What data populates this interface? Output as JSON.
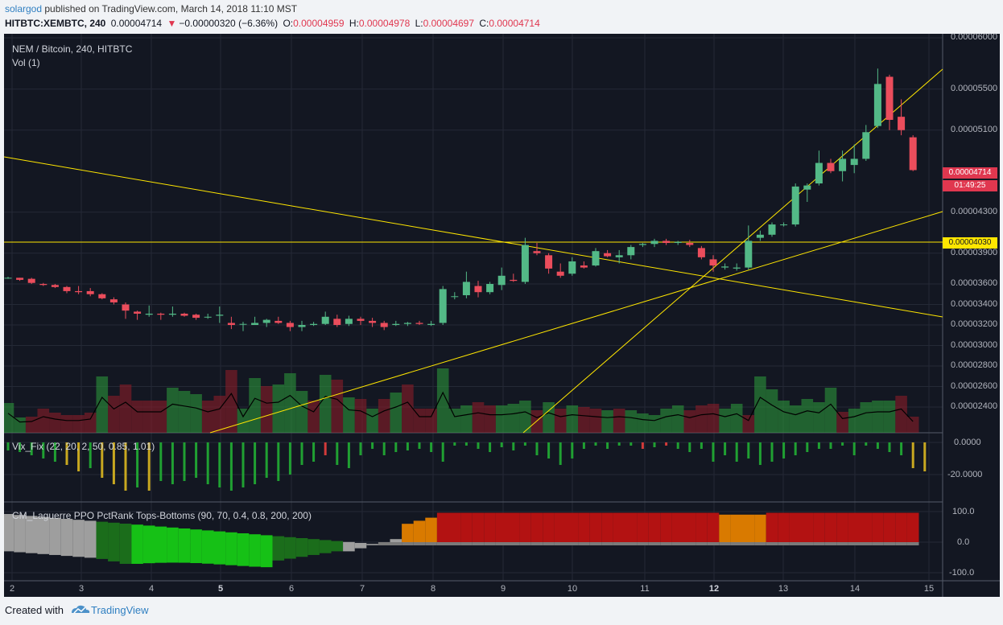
{
  "header": {
    "author": "solargod",
    "published_text": "published on TradingView.com, March 14, 2018 11:10 MST",
    "symbol": "HITBTC:XEMBTC, 240",
    "last": "0.00004714",
    "change": "−0.00000320 (−6.36%)",
    "o_label": "O:",
    "o": "0.00004959",
    "h_label": "H:",
    "h": "0.00004978",
    "l_label": "L:",
    "l": "0.00004697",
    "c_label": "C:",
    "c": "0.00004714"
  },
  "legend": {
    "title": "NEM / Bitcoin, 240, HITBTC",
    "vol": "Vol (1)",
    "vix": "Vix_Fix (22, 20, 2, 50, 0.85, 1.01)",
    "laguerre": "CM_Laguerre PPO PctRank Tops-Bottoms (90, 70, 0.4, 0.8, 200, 200)"
  },
  "price_axis": [
    "0.00006000",
    "0.00005500",
    "0.00005100",
    "0.00004300",
    "0.00003900",
    "0.00003600",
    "0.00003400",
    "0.00003200",
    "0.00003000",
    "0.00002800",
    "0.00002600",
    "0.00002400"
  ],
  "price_badge": {
    "value": "0.00004714",
    "countdown": "01:49:25",
    "color": "#e0374f"
  },
  "line_badge": {
    "value": "0.00004030",
    "color": "#ffe600"
  },
  "vix_axis": [
    "0.0000",
    "-20.0000"
  ],
  "lag_axis": [
    "100.0",
    "0.0",
    "-100.0"
  ],
  "time_axis": [
    {
      "label": "2",
      "bold": false
    },
    {
      "label": "3",
      "bold": false
    },
    {
      "label": "4",
      "bold": false
    },
    {
      "label": "5",
      "bold": true
    },
    {
      "label": "6",
      "bold": false
    },
    {
      "label": "7",
      "bold": false
    },
    {
      "label": "8",
      "bold": false
    },
    {
      "label": "9",
      "bold": false
    },
    {
      "label": "10",
      "bold": false
    },
    {
      "label": "11",
      "bold": false
    },
    {
      "label": "12",
      "bold": true
    },
    {
      "label": "13",
      "bold": false
    },
    {
      "label": "14",
      "bold": false
    },
    {
      "label": "15",
      "bold": false
    }
  ],
  "footer": {
    "created": "Created with",
    "brand": "TradingView"
  },
  "colors": {
    "up": "#53b987",
    "down": "#eb4d5c",
    "bg": "#131722",
    "trend": "#ffe600"
  },
  "chart_data": {
    "type": "candlestick",
    "ohlc": [
      [
        3.66,
        3.67,
        3.65,
        3.66
      ],
      [
        3.66,
        3.66,
        3.63,
        3.64
      ],
      [
        3.65,
        3.66,
        3.6,
        3.61
      ],
      [
        3.6,
        3.61,
        3.58,
        3.59
      ],
      [
        3.59,
        3.6,
        3.56,
        3.57
      ],
      [
        3.57,
        3.58,
        3.51,
        3.53
      ],
      [
        3.53,
        3.58,
        3.5,
        3.52
      ],
      [
        3.53,
        3.56,
        3.48,
        3.5
      ],
      [
        3.5,
        3.51,
        3.45,
        3.46
      ],
      [
        3.45,
        3.47,
        3.4,
        3.42
      ],
      [
        3.4,
        3.42,
        3.26,
        3.34
      ],
      [
        3.33,
        3.34,
        3.25,
        3.31
      ],
      [
        3.3,
        3.39,
        3.28,
        3.31
      ],
      [
        3.31,
        3.32,
        3.25,
        3.3
      ],
      [
        3.3,
        3.38,
        3.28,
        3.31
      ],
      [
        3.31,
        3.32,
        3.28,
        3.29
      ],
      [
        3.3,
        3.31,
        3.25,
        3.27
      ],
      [
        3.28,
        3.31,
        3.26,
        3.28
      ],
      [
        3.29,
        3.38,
        3.22,
        3.3
      ],
      [
        3.22,
        3.28,
        3.16,
        3.2
      ],
      [
        3.21,
        3.23,
        3.14,
        3.21
      ],
      [
        3.2,
        3.28,
        3.2,
        3.22
      ],
      [
        3.22,
        3.26,
        3.18,
        3.25
      ],
      [
        3.24,
        3.28,
        3.21,
        3.22
      ],
      [
        3.22,
        3.24,
        3.14,
        3.18
      ],
      [
        3.18,
        3.24,
        3.14,
        3.2
      ],
      [
        3.2,
        3.23,
        3.19,
        3.21
      ],
      [
        3.21,
        3.33,
        3.2,
        3.28
      ],
      [
        3.26,
        3.3,
        3.18,
        3.2
      ],
      [
        3.21,
        3.29,
        3.19,
        3.26
      ],
      [
        3.26,
        3.28,
        3.2,
        3.24
      ],
      [
        3.24,
        3.27,
        3.18,
        3.22
      ],
      [
        3.22,
        3.24,
        3.15,
        3.18
      ],
      [
        3.2,
        3.24,
        3.19,
        3.21
      ],
      [
        3.21,
        3.23,
        3.19,
        3.22
      ],
      [
        3.22,
        3.24,
        3.2,
        3.21
      ],
      [
        3.2,
        3.24,
        3.19,
        3.21
      ],
      [
        3.22,
        3.58,
        3.2,
        3.55
      ],
      [
        3.48,
        3.52,
        3.45,
        3.48
      ],
      [
        3.49,
        3.72,
        3.46,
        3.62
      ],
      [
        3.58,
        3.63,
        3.47,
        3.52
      ],
      [
        3.52,
        3.62,
        3.5,
        3.6
      ],
      [
        3.59,
        3.76,
        3.54,
        3.68
      ],
      [
        3.64,
        3.7,
        3.62,
        3.63
      ],
      [
        3.62,
        4.05,
        3.6,
        3.98
      ],
      [
        3.92,
        4.0,
        3.88,
        3.9
      ],
      [
        3.88,
        3.9,
        3.7,
        3.75
      ],
      [
        3.72,
        3.8,
        3.66,
        3.68
      ],
      [
        3.7,
        3.86,
        3.68,
        3.82
      ],
      [
        3.78,
        3.82,
        3.75,
        3.76
      ],
      [
        3.78,
        3.95,
        3.77,
        3.92
      ],
      [
        3.9,
        3.93,
        3.86,
        3.87
      ],
      [
        3.86,
        3.93,
        3.8,
        3.88
      ],
      [
        3.88,
        3.98,
        3.84,
        3.96
      ],
      [
        3.98,
        4.0,
        3.96,
        3.99
      ],
      [
        3.99,
        4.04,
        3.96,
        4.02
      ],
      [
        4.02,
        4.04,
        3.98,
        4.0
      ],
      [
        4.0,
        4.02,
        3.98,
        4.01
      ],
      [
        4.0,
        4.03,
        3.96,
        3.98
      ],
      [
        3.95,
        3.97,
        3.84,
        3.86
      ],
      [
        3.84,
        3.88,
        3.72,
        3.78
      ],
      [
        3.76,
        3.8,
        3.74,
        3.77
      ],
      [
        3.75,
        3.8,
        3.73,
        3.76
      ],
      [
        3.76,
        4.17,
        3.74,
        4.02
      ],
      [
        4.05,
        4.12,
        4.02,
        4.08
      ],
      [
        4.08,
        4.2,
        4.06,
        4.18
      ],
      [
        4.18,
        4.2,
        4.16,
        4.18
      ],
      [
        4.18,
        4.58,
        4.16,
        4.55
      ],
      [
        4.52,
        4.58,
        4.4,
        4.56
      ],
      [
        4.58,
        4.9,
        4.56,
        4.78
      ],
      [
        4.78,
        4.82,
        4.68,
        4.7
      ],
      [
        4.7,
        4.9,
        4.6,
        4.82
      ],
      [
        4.76,
        4.96,
        4.68,
        4.82
      ],
      [
        4.82,
        5.15,
        4.8,
        5.08
      ],
      [
        5.14,
        5.7,
        5.12,
        5.55
      ],
      [
        5.62,
        5.64,
        5.1,
        5.2
      ],
      [
        5.23,
        5.4,
        5.05,
        5.1
      ],
      [
        5.03,
        5.05,
        4.7,
        4.71
      ]
    ],
    "volume": [
      [
        37,
        1
      ],
      [
        19,
        1
      ],
      [
        20,
        0
      ],
      [
        30,
        0
      ],
      [
        25,
        0
      ],
      [
        22,
        0
      ],
      [
        22,
        0
      ],
      [
        25,
        0
      ],
      [
        70,
        1
      ],
      [
        46,
        0
      ],
      [
        60,
        0
      ],
      [
        40,
        0
      ],
      [
        40,
        0
      ],
      [
        40,
        0
      ],
      [
        56,
        1
      ],
      [
        52,
        1
      ],
      [
        48,
        1
      ],
      [
        40,
        0
      ],
      [
        46,
        0
      ],
      [
        78,
        0
      ],
      [
        30,
        1
      ],
      [
        68,
        1
      ],
      [
        58,
        0
      ],
      [
        60,
        1
      ],
      [
        74,
        1
      ],
      [
        52,
        1
      ],
      [
        40,
        0
      ],
      [
        72,
        1
      ],
      [
        66,
        0
      ],
      [
        44,
        1
      ],
      [
        42,
        0
      ],
      [
        30,
        1
      ],
      [
        42,
        0
      ],
      [
        50,
        1
      ],
      [
        60,
        0
      ],
      [
        30,
        0
      ],
      [
        30,
        0
      ],
      [
        80,
        1
      ],
      [
        30,
        1
      ],
      [
        34,
        1
      ],
      [
        38,
        0
      ],
      [
        34,
        0
      ],
      [
        34,
        1
      ],
      [
        36,
        1
      ],
      [
        40,
        1
      ],
      [
        28,
        0
      ],
      [
        38,
        1
      ],
      [
        30,
        0
      ],
      [
        34,
        1
      ],
      [
        32,
        0
      ],
      [
        30,
        0
      ],
      [
        28,
        1
      ],
      [
        30,
        0
      ],
      [
        28,
        1
      ],
      [
        24,
        1
      ],
      [
        22,
        1
      ],
      [
        30,
        1
      ],
      [
        34,
        1
      ],
      [
        28,
        0
      ],
      [
        34,
        0
      ],
      [
        36,
        0
      ],
      [
        30,
        1
      ],
      [
        36,
        1
      ],
      [
        22,
        0
      ],
      [
        70,
        1
      ],
      [
        54,
        1
      ],
      [
        40,
        1
      ],
      [
        34,
        1
      ],
      [
        42,
        1
      ],
      [
        38,
        1
      ],
      [
        56,
        1
      ],
      [
        26,
        0
      ],
      [
        30,
        1
      ],
      [
        38,
        1
      ],
      [
        40,
        1
      ],
      [
        40,
        1
      ],
      [
        46,
        0
      ],
      [
        20,
        0
      ]
    ],
    "vix": [
      [
        -5,
        1
      ],
      [
        -6,
        1
      ],
      [
        -8,
        1
      ],
      [
        -10,
        1
      ],
      [
        -12,
        1
      ],
      [
        -14,
        0
      ],
      [
        -18,
        0
      ],
      [
        -16,
        1
      ],
      [
        -22,
        0
      ],
      [
        -26,
        0
      ],
      [
        -30,
        0
      ],
      [
        -28,
        1
      ],
      [
        -30,
        0
      ],
      [
        -24,
        1
      ],
      [
        -26,
        1
      ],
      [
        -24,
        1
      ],
      [
        -22,
        1
      ],
      [
        -26,
        1
      ],
      [
        -28,
        1
      ],
      [
        -30,
        1
      ],
      [
        -28,
        1
      ],
      [
        -26,
        1
      ],
      [
        -22,
        1
      ],
      [
        -24,
        1
      ],
      [
        -20,
        1
      ],
      [
        -14,
        1
      ],
      [
        -12,
        1
      ],
      [
        -8,
        2
      ],
      [
        -14,
        1
      ],
      [
        -16,
        1
      ],
      [
        -8,
        1
      ],
      [
        -4,
        1
      ],
      [
        -8,
        1
      ],
      [
        -6,
        1
      ],
      [
        -5,
        1
      ],
      [
        -4,
        1
      ],
      [
        -6,
        1
      ],
      [
        -12,
        1
      ],
      [
        -2,
        1
      ],
      [
        -2,
        1
      ],
      [
        -4,
        1
      ],
      [
        -6,
        1
      ],
      [
        -3,
        1
      ],
      [
        -5,
        1
      ],
      [
        -2,
        1
      ],
      [
        -8,
        1
      ],
      [
        -10,
        1
      ],
      [
        -14,
        1
      ],
      [
        -10,
        1
      ],
      [
        -4,
        1
      ],
      [
        -2,
        1
      ],
      [
        -4,
        1
      ],
      [
        -2,
        1
      ],
      [
        -2,
        1
      ],
      [
        -4,
        2
      ],
      [
        -3,
        1
      ],
      [
        -2,
        2
      ],
      [
        -4,
        1
      ],
      [
        -6,
        1
      ],
      [
        -4,
        1
      ],
      [
        -12,
        1
      ],
      [
        -8,
        1
      ],
      [
        -12,
        1
      ],
      [
        -10,
        1
      ],
      [
        -14,
        1
      ],
      [
        -12,
        1
      ],
      [
        -10,
        1
      ],
      [
        -8,
        1
      ],
      [
        -6,
        1
      ],
      [
        -4,
        1
      ],
      [
        -4,
        1
      ],
      [
        -2,
        1
      ],
      [
        -8,
        1
      ],
      [
        -2,
        1
      ],
      [
        -4,
        1
      ],
      [
        -6,
        1
      ],
      [
        -8,
        1
      ],
      [
        -16,
        0
      ],
      [
        -18,
        0
      ]
    ]
  }
}
